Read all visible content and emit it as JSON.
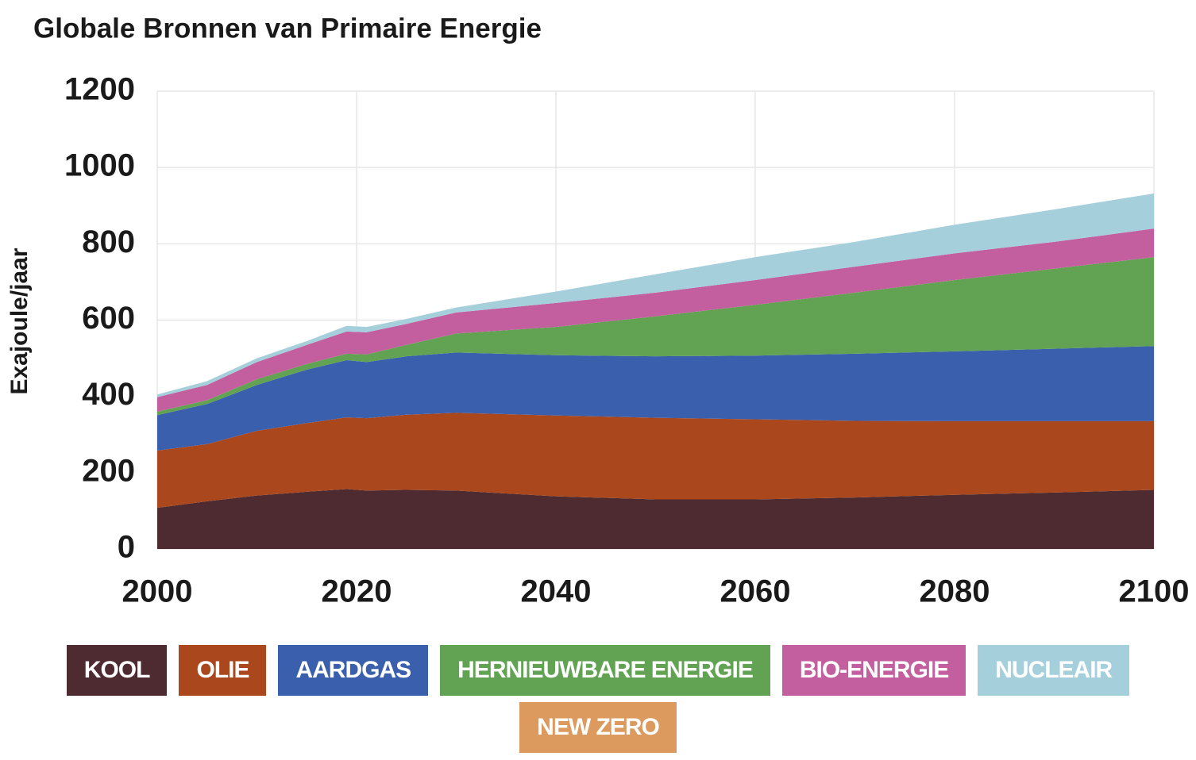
{
  "chart_data": {
    "type": "stacked-area",
    "title": "Globale Bronnen van Primaire Energie",
    "y_label": "Exajoule/jaar",
    "x": [
      2000,
      2005,
      2010,
      2015,
      2019,
      2021,
      2025,
      2030,
      2040,
      2050,
      2060,
      2070,
      2080,
      2090,
      2100
    ],
    "xlim": [
      2000,
      2100
    ],
    "xticks": [
      2000,
      2020,
      2040,
      2060,
      2080,
      2100
    ],
    "ylim": [
      0,
      1200
    ],
    "yticks": [
      0,
      200,
      400,
      600,
      800,
      1000,
      1200
    ],
    "grid": true,
    "series": [
      {
        "name": "KOOL",
        "color": "#4e2b30",
        "values": [
          108,
          125,
          140,
          150,
          157,
          153,
          155,
          153,
          138,
          130,
          130,
          135,
          142,
          148,
          155
        ]
      },
      {
        "name": "OLIE",
        "color": "#ab471c",
        "values": [
          150,
          150,
          170,
          180,
          188,
          190,
          197,
          204,
          212,
          214,
          210,
          201,
          193,
          187,
          180
        ]
      },
      {
        "name": "AARDGAS",
        "color": "#3a5fad",
        "values": [
          93,
          105,
          120,
          140,
          150,
          147,
          153,
          158,
          158,
          161,
          167,
          176,
          183,
          190,
          197
        ]
      },
      {
        "name": "HERNIEUWBARE ENERGIE",
        "color": "#62a353",
        "values": [
          9,
          10,
          15,
          15,
          17,
          20,
          30,
          50,
          74,
          105,
          133,
          160,
          187,
          210,
          233
        ]
      },
      {
        "name": "BIO-ENERGIE",
        "color": "#c35f9e",
        "values": [
          38,
          40,
          45,
          50,
          58,
          58,
          55,
          55,
          63,
          62,
          65,
          68,
          70,
          70,
          75
        ]
      },
      {
        "name": "NUCLEAIR",
        "color": "#a6cfdc",
        "values": [
          7,
          10,
          10,
          10,
          15,
          14,
          13,
          13,
          30,
          48,
          60,
          65,
          75,
          85,
          92
        ]
      },
      {
        "name": "NEW ZERO",
        "color": "#dd9a5e",
        "values": [
          0,
          0,
          0,
          0,
          0,
          0,
          0,
          0,
          0,
          0,
          0,
          0,
          0,
          0,
          0
        ]
      }
    ]
  }
}
